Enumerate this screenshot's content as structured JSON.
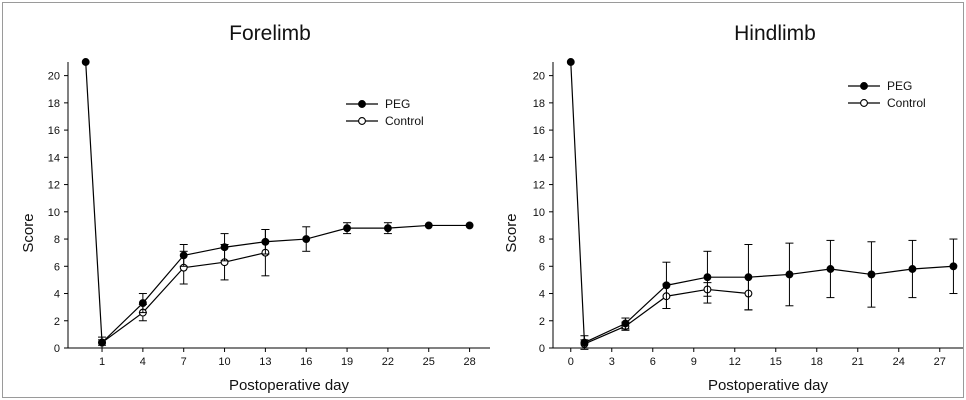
{
  "chart_data": [
    {
      "type": "line",
      "title": "Forelimb",
      "xlabel": "Postoperative day",
      "ylabel": "Score",
      "xticks": [
        1,
        4,
        7,
        10,
        13,
        16,
        19,
        22,
        25,
        28
      ],
      "yticks": [
        0,
        2,
        4,
        6,
        8,
        10,
        12,
        14,
        16,
        18,
        20
      ],
      "xlim": [
        -1.5,
        29.5
      ],
      "ylim": [
        0,
        21
      ],
      "legend_position": "top-right",
      "series": [
        {
          "name": "PEG",
          "marker": "filled-circle",
          "x": [
            -0.2,
            1,
            4,
            7,
            10,
            13,
            16,
            19,
            22,
            25,
            28
          ],
          "y": [
            21,
            0.4,
            3.3,
            6.8,
            7.4,
            7.8,
            8.0,
            8.8,
            8.8,
            9.0,
            9.0
          ],
          "err": [
            0,
            0.2,
            0.7,
            0.8,
            1.0,
            0.9,
            0.9,
            0.4,
            0.4,
            0.0,
            0.0
          ]
        },
        {
          "name": "Control",
          "marker": "open-circle",
          "x": [
            1,
            4,
            7,
            10,
            13
          ],
          "y": [
            0.4,
            2.6,
            5.9,
            6.3,
            7.0
          ],
          "err": [
            0.4,
            0.6,
            1.2,
            1.3,
            1.7
          ]
        }
      ]
    },
    {
      "type": "line",
      "title": "Hindlimb",
      "xlabel": "Postoperative day",
      "ylabel": "Score",
      "xticks": [
        0,
        3,
        6,
        9,
        12,
        15,
        18,
        21,
        24,
        27
      ],
      "yticks": [
        0,
        2,
        4,
        6,
        8,
        10,
        12,
        14,
        16,
        18,
        20
      ],
      "xlim": [
        -1.3,
        28.7
      ],
      "ylim": [
        0,
        21
      ],
      "legend_position": "top-right",
      "series": [
        {
          "name": "PEG",
          "marker": "filled-circle",
          "x": [
            0,
            1,
            4,
            7,
            10,
            13,
            16,
            19,
            22,
            25,
            28
          ],
          "y": [
            21,
            0.4,
            1.8,
            4.6,
            5.2,
            5.2,
            5.4,
            5.8,
            5.4,
            5.8,
            6.0
          ],
          "err": [
            0,
            0.5,
            0.4,
            1.7,
            1.9,
            2.4,
            2.3,
            2.1,
            2.4,
            2.1,
            2.0
          ]
        },
        {
          "name": "Control",
          "marker": "open-circle",
          "x": [
            1,
            4,
            7,
            10,
            13
          ],
          "y": [
            0.3,
            1.6,
            3.8,
            4.3,
            4.0
          ],
          "err": [
            0.3,
            0.3,
            0.9,
            0.5,
            1.2
          ]
        }
      ]
    }
  ]
}
